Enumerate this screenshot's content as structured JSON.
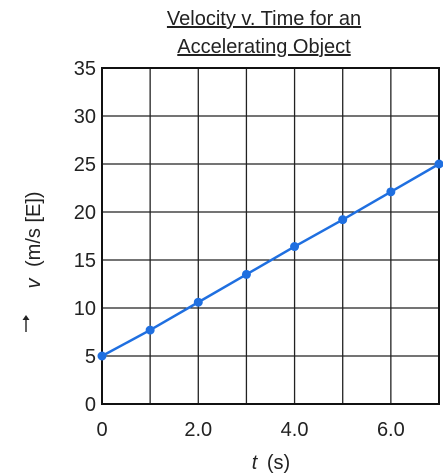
{
  "chart_data": {
    "type": "line",
    "title": [
      "Velocity v. Time for an",
      "Accelerating Object"
    ],
    "xlabel": {
      "symbol": "t",
      "unit": "(s)"
    },
    "ylabel": {
      "symbol": "v",
      "unit": "(m/s [E])"
    },
    "xlim": [
      0,
      7
    ],
    "ylim": [
      0,
      35
    ],
    "xticks": [
      0,
      2,
      4,
      6
    ],
    "xtick_labels": [
      "0",
      "2.0",
      "4.0",
      "6.0"
    ],
    "yticks": [
      0,
      5,
      10,
      15,
      20,
      25,
      30,
      35
    ],
    "ytick_labels": [
      "0",
      "5",
      "10",
      "15",
      "20",
      "25",
      "30",
      "35"
    ],
    "x_grid_step": 1,
    "y_grid_step": 5,
    "grid": true,
    "series": [
      {
        "x": [
          0,
          1,
          2,
          3,
          4,
          5,
          6,
          7
        ],
        "y": [
          5.0,
          7.7,
          10.6,
          13.5,
          16.4,
          19.2,
          22.1,
          25.0
        ],
        "color": "#1f6fe0"
      }
    ]
  }
}
